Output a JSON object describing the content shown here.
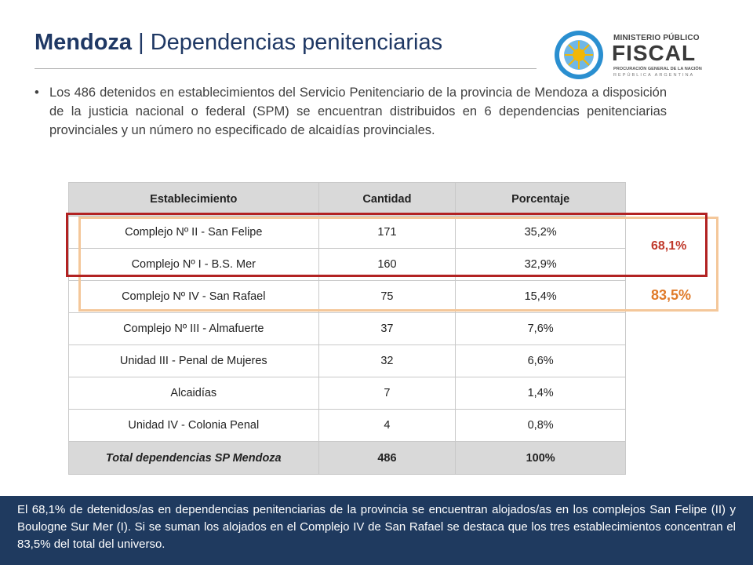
{
  "header": {
    "title_bold": "Mendoza",
    "title_rest": " | Dependencias penitenciarias"
  },
  "logo": {
    "line1": "MINISTERIO PÚBLICO",
    "line2": "FISCAL",
    "line3": "PROCURACIÓN GENERAL DE LA NACIÓN",
    "line4": "REPÚBLICA ARGENTINA",
    "colors": {
      "ring": "#2a8fd0",
      "sun": "#f2b705",
      "text": "#3a3a3a"
    }
  },
  "intro": {
    "bullet": "•",
    "text": "Los 486 detenidos en establecimientos del Servicio Penitenciario de la provincia de Mendoza a disposición de la justicia nacional o federal (SPM) se encuentran distribuidos en 6 dependencias penitenciarias provinciales y un número no especificado de alcaidías provinciales."
  },
  "table": {
    "headers": [
      "Establecimiento",
      "Cantidad",
      "Porcentaje"
    ],
    "rows": [
      [
        "Complejo Nº II - San Felipe",
        "171",
        "35,2%"
      ],
      [
        "Complejo Nº I - B.S. Mer",
        "160",
        "32,9%"
      ],
      [
        "Complejo Nº IV - San Rafael",
        "75",
        "15,4%"
      ],
      [
        "Complejo Nº III - Almafuerte",
        "37",
        "7,6%"
      ],
      [
        "Unidad III - Penal de Mujeres",
        "32",
        "6,6%"
      ],
      [
        "Alcaidías",
        "7",
        "1,4%"
      ],
      [
        "Unidad IV - Colonia Penal",
        "4",
        "0,8%"
      ]
    ],
    "total": [
      "Total dependencias SP Mendoza",
      "486",
      "100%"
    ]
  },
  "highlights": {
    "top_two": "68,1%",
    "top_three": "83,5%",
    "colors": {
      "top_two": "#b22222",
      "top_three": "#f4c79a"
    }
  },
  "footer": {
    "text": "El 68,1% de detenidos/as en dependencias penitenciarias de la provincia se encuentran alojados/as en los complejos San Felipe (II) y Boulogne Sur Mer (I). Si se suman los alojados en el Complejo IV de San Rafael se destaca que los tres establecimientos concentran el 83,5% del total del universo.",
    "background": "#1f3a5f"
  }
}
